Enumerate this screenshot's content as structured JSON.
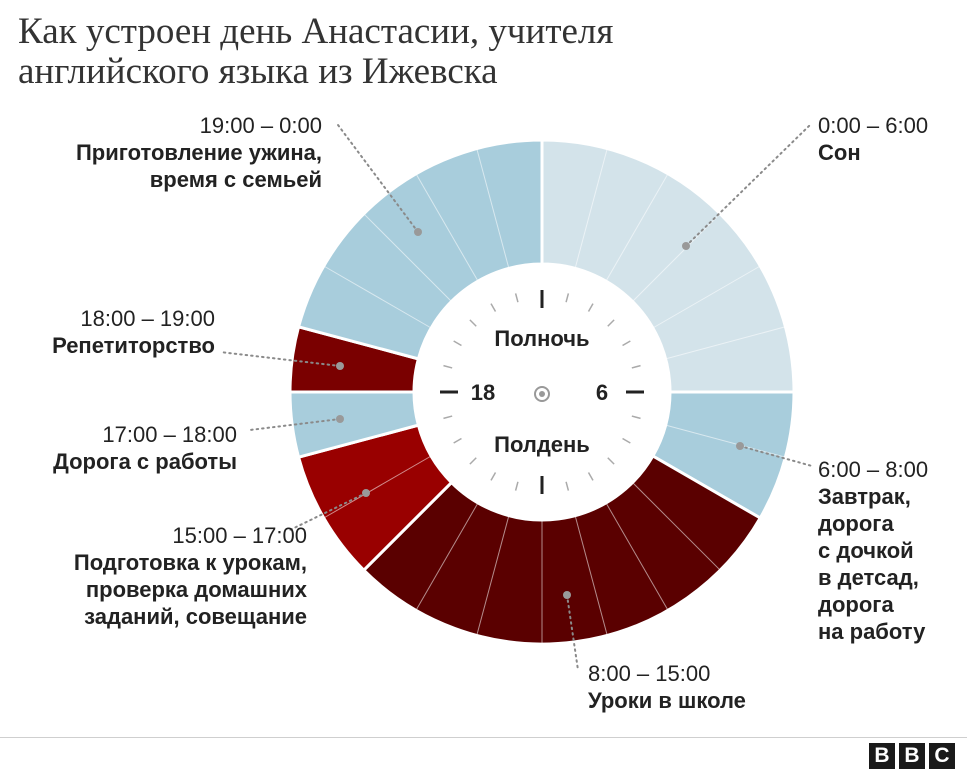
{
  "title": {
    "line1": "Как устроен день Анастасии, учителя",
    "line2": "английского языка из Ижевска"
  },
  "chart_data": {
    "type": "radial-clock",
    "center_labels": {
      "top": "Полночь",
      "bottom": "Полдень",
      "left": "18",
      "right": "6"
    },
    "segments": [
      {
        "time": "0:00 – 6:00",
        "activity": "Сон",
        "start": 0,
        "end": 6,
        "color": "#d3e3ea"
      },
      {
        "time": "6:00 – 8:00",
        "activity": "Завтрак, дорога с дочкой в детсад, дорога на работу",
        "activity_lines": [
          "Завтрак,",
          "дорога",
          "с дочкой",
          "в детсад,",
          "дорога",
          "на работу"
        ],
        "start": 6,
        "end": 8,
        "color": "#a8cddc"
      },
      {
        "time": "8:00 – 15:00",
        "activity": "Уроки в школе",
        "start": 8,
        "end": 15,
        "color": "#5a0000"
      },
      {
        "time": "15:00 – 17:00",
        "activity": "Подготовка к урокам, проверка домашних заданий, совещание",
        "activity_lines": [
          "Подготовка к урокам,",
          "проверка домашних",
          "заданий, совещание"
        ],
        "start": 15,
        "end": 17,
        "color": "#990000"
      },
      {
        "time": "17:00 – 18:00",
        "activity": "Дорога с работы",
        "start": 17,
        "end": 18,
        "color": "#a8cddc"
      },
      {
        "time": "18:00 – 19:00",
        "activity": "Репетиторство",
        "start": 18,
        "end": 19,
        "color": "#7a0000"
      },
      {
        "time": "19:00 – 0:00",
        "activity": "Приготовление ужина, время с семьей",
        "activity_lines": [
          "Приготовление ужина,",
          "время с семьей"
        ],
        "start": 19,
        "end": 24,
        "color": "#a8cddc"
      }
    ]
  },
  "footer": {
    "logo": [
      "B",
      "B",
      "C"
    ]
  }
}
